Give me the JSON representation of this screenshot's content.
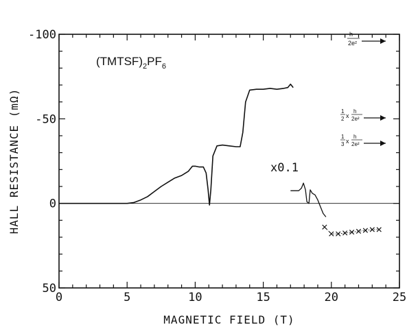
{
  "chart_data": {
    "type": "line",
    "title": "",
    "xlabel": "MAGNETIC FIELD (T)",
    "ylabel": "HALL RESISTANCE (mΩ)",
    "xlim": [
      0,
      25
    ],
    "ylim": [
      50,
      -100
    ],
    "y_axis_inverted": true,
    "x_ticks": [
      0,
      5,
      10,
      15,
      20,
      25
    ],
    "y_ticks": [
      -100,
      -50,
      0,
      50
    ],
    "x_tick_labels": [
      "0",
      "5",
      "10",
      "15",
      "20",
      "25"
    ],
    "y_tick_labels": [
      "-100",
      "-50",
      "0",
      "50"
    ],
    "grid": false,
    "zero_line": true,
    "series": [
      {
        "x": [
          0,
          4.0,
          5.0,
          5.5,
          6.0,
          6.5,
          7.0,
          7.5,
          8.0,
          8.5,
          9.0,
          9.5,
          9.8,
          10.0,
          10.3,
          10.6,
          10.8,
          10.95,
          11.05,
          11.15,
          11.3,
          11.6,
          12.0,
          12.5,
          13.0,
          13.3,
          13.5,
          13.7,
          14.0,
          14.5,
          15.0,
          15.5,
          16.0,
          16.5,
          16.8,
          17.0,
          17.2
        ],
        "y": [
          0,
          0,
          0,
          -0.5,
          -2,
          -4,
          -7,
          -10,
          -12.5,
          -15,
          -16.5,
          -19,
          -22,
          -22,
          -21.5,
          -21.5,
          -18,
          -8,
          1,
          -8,
          -28,
          -34,
          -34.5,
          -34,
          -33.5,
          -33.5,
          -42,
          -60,
          -67,
          -67.5,
          -67.5,
          -68,
          -67.5,
          -68,
          -68.5,
          -70.5,
          -68.5
        ]
      },
      {
        "x": [
          17.0,
          17.3,
          17.6,
          17.8,
          17.95,
          18.1,
          18.2,
          18.35,
          18.45,
          18.6,
          18.8,
          19.0,
          19.2,
          19.4,
          19.6
        ],
        "y": [
          -7.5,
          -7.5,
          -7.5,
          -9,
          -12,
          -8,
          -1,
          0,
          -8,
          -6,
          -5,
          -2,
          2,
          6,
          8
        ]
      },
      {
        "x": [
          19.5,
          20.0,
          20.5,
          21.0,
          21.5,
          22.0,
          22.5,
          23.0,
          23.5
        ],
        "y": [
          14,
          18,
          18,
          17.5,
          17,
          16.5,
          16,
          15.5,
          15.5
        ]
      }
    ],
    "annotations": {
      "compound": "(TMTSF)₂PF₆",
      "scale_note": "x0.1",
      "h_over_2e2": "h/2e²",
      "half_prefix": "1/2 x",
      "third_prefix": "1/3 x"
    }
  }
}
